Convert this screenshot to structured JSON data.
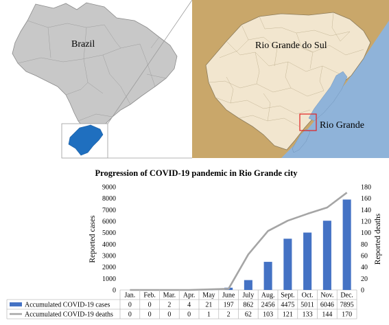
{
  "maps": {
    "country_label": "Brazil",
    "state_label": "Rio Grande do Sul",
    "city_label": "Rio Grande",
    "colors": {
      "country_fill": "#c8c8c8",
      "state_fill": "#1f6fbf",
      "zoom_land": "#f2e6cf",
      "zoom_outside": "#c9a76a",
      "water": "#8fb3d9",
      "highlight_box": "#e02020"
    }
  },
  "chart_data": {
    "type": "bar",
    "title": "Progression of COVID-19 pandemic in Rio Grande city",
    "categories": [
      "Jan.",
      "Feb.",
      "Mar.",
      "Apr.",
      "May",
      "June",
      "July",
      "Aug.",
      "Sept.",
      "Oct.",
      "Nov.",
      "Dec."
    ],
    "ylabel": "Reported cases",
    "y2label": "Reported deaths",
    "ylim": [
      0,
      9000
    ],
    "yticks": [
      0,
      1000,
      2000,
      3000,
      4000,
      5000,
      6000,
      7000,
      8000,
      9000
    ],
    "y2lim": [
      0,
      180
    ],
    "y2ticks": [
      0,
      20,
      40,
      60,
      80,
      100,
      120,
      140,
      160,
      180
    ],
    "grid": false,
    "legend": "table-left",
    "series": [
      {
        "name": "Accumulated COVID-19 cases",
        "type": "bar",
        "axis": "left",
        "color": "#4472c4",
        "values": [
          0,
          0,
          2,
          4,
          21,
          197,
          862,
          2456,
          4475,
          5011,
          6046,
          7895
        ]
      },
      {
        "name": "Accumulated COVID-19 deaths",
        "type": "line",
        "axis": "right",
        "color": "#a5a5a5",
        "values": [
          0,
          0,
          0,
          0,
          1,
          2,
          62,
          103,
          121,
          133,
          144,
          170
        ]
      }
    ]
  }
}
